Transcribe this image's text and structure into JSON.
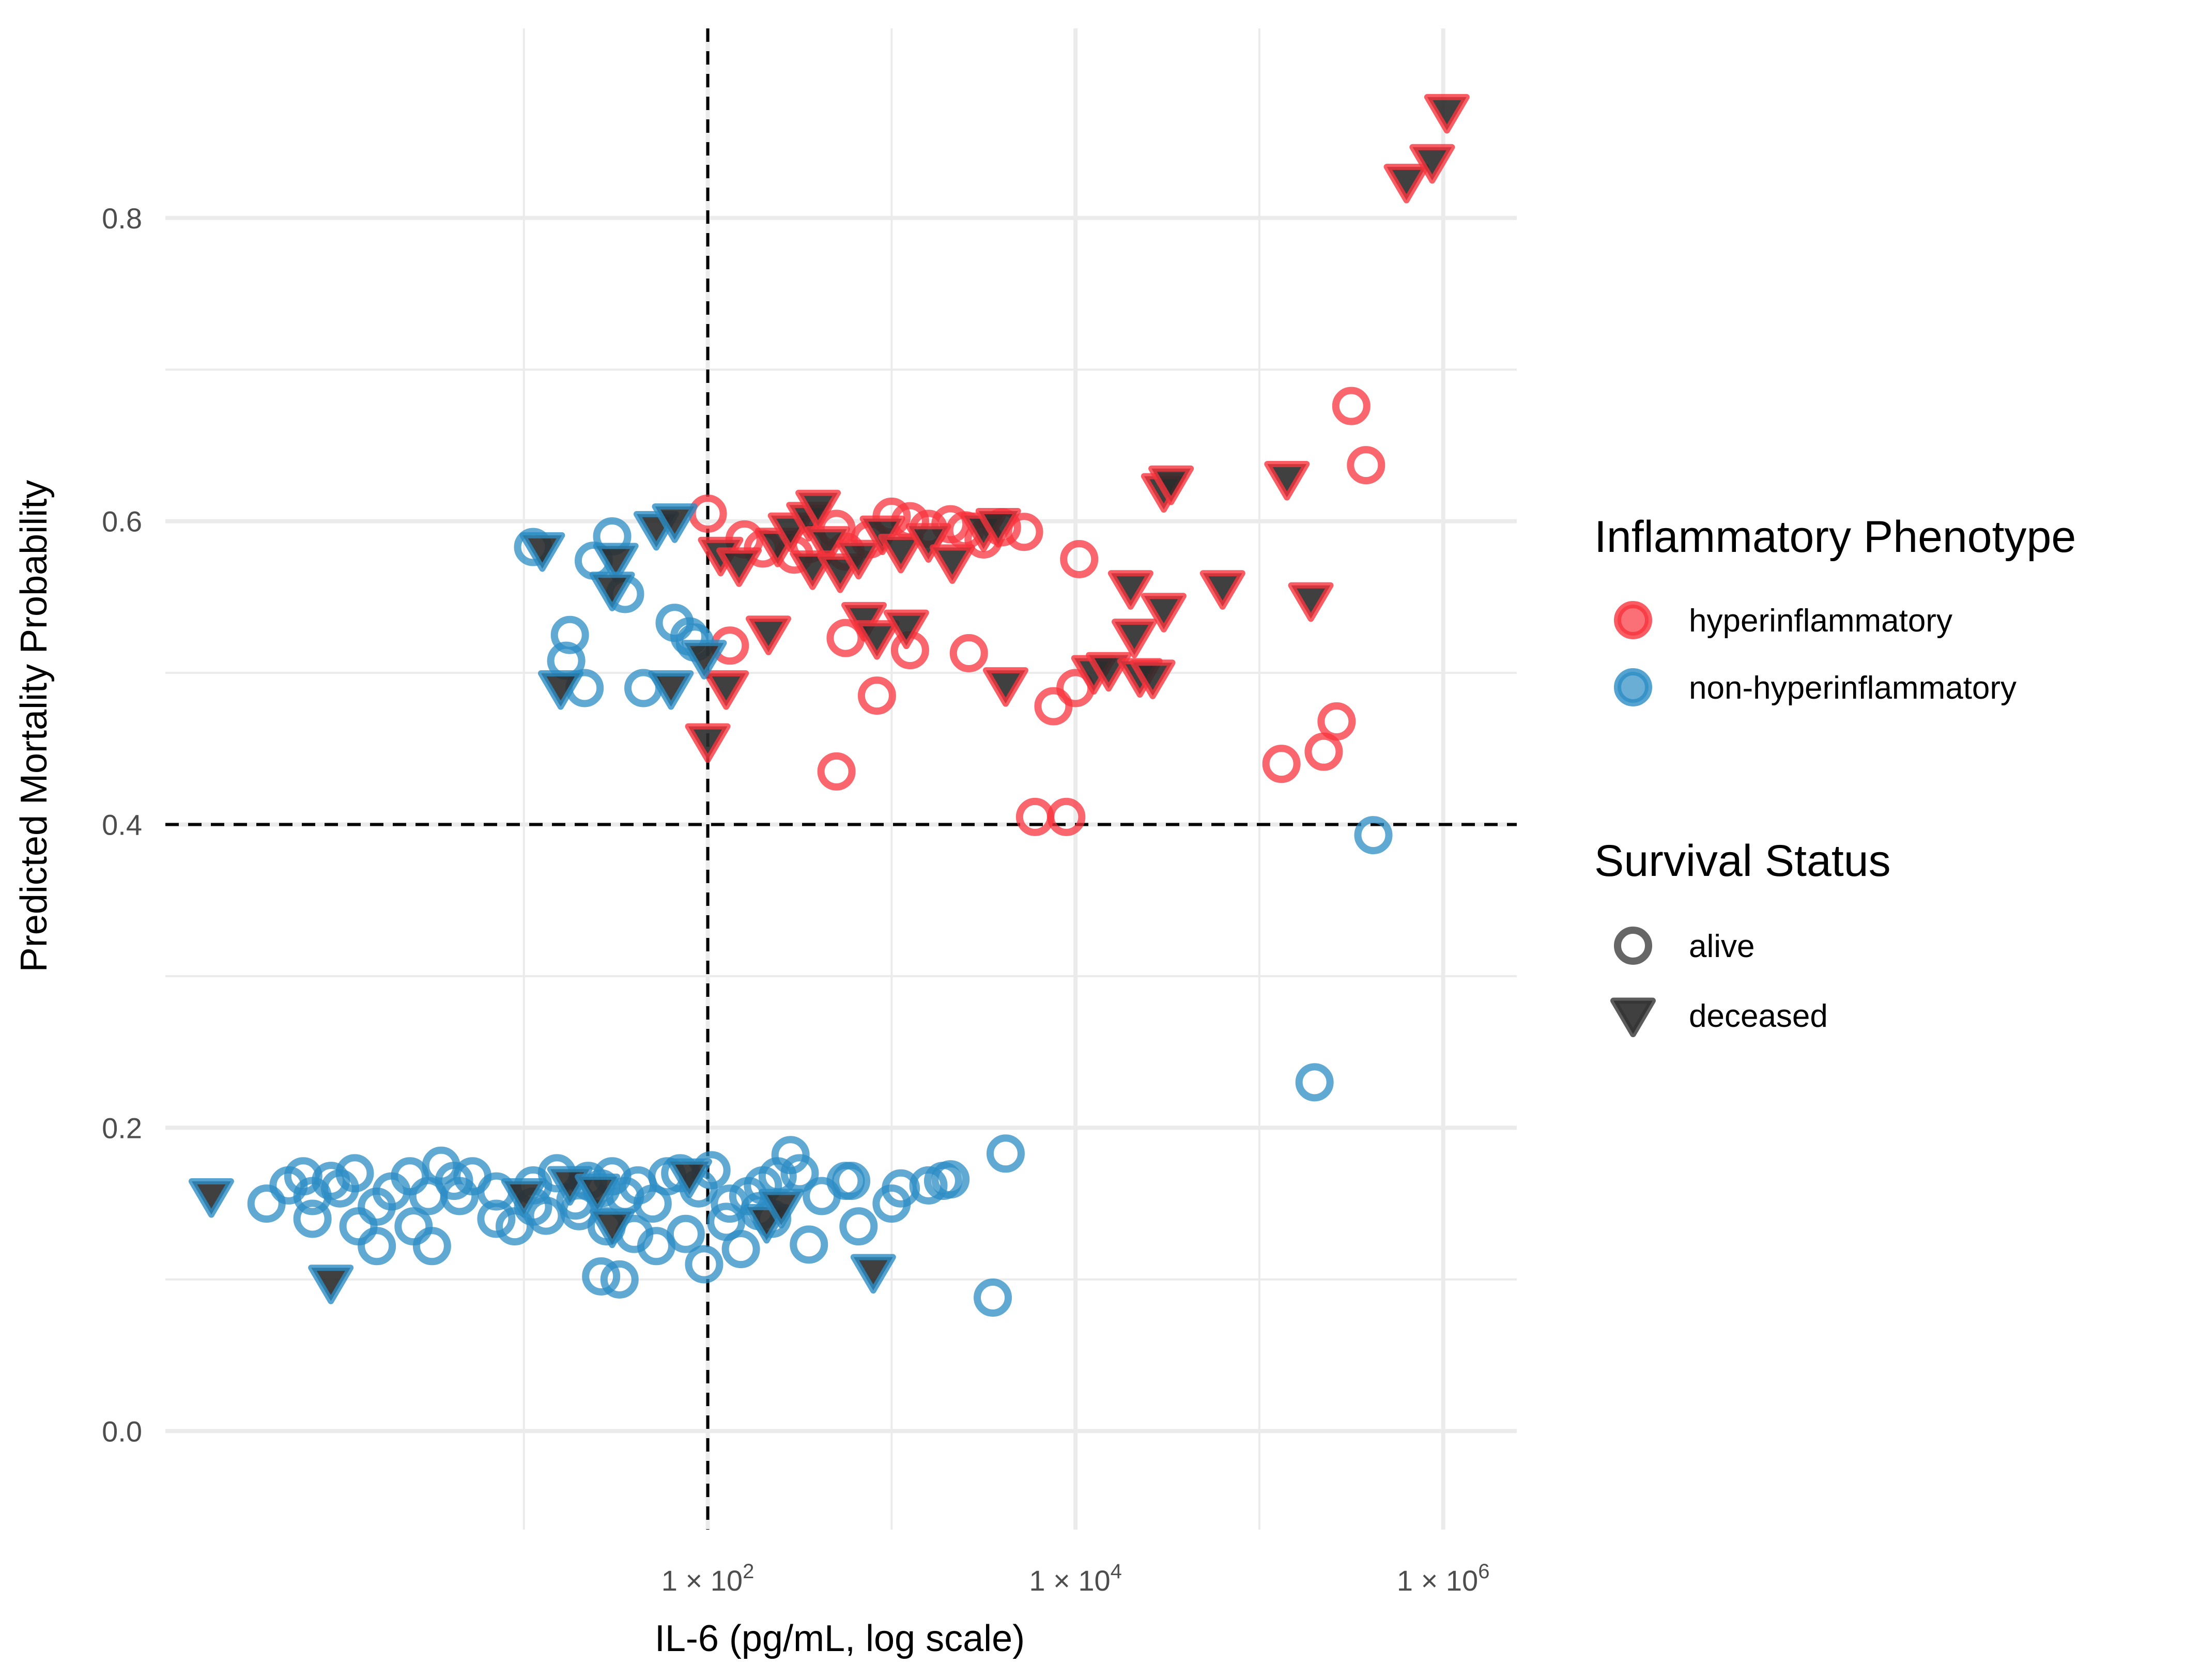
{
  "chart_data": {
    "type": "scatter",
    "xlabel": "IL-6 (pg/mL, log scale)",
    "ylabel": "Predicted Mortality Probability",
    "x_scale": "log10",
    "xlim_log10": [
      -0.95,
      6.4
    ],
    "ylim": [
      -0.065,
      0.925
    ],
    "x_ticks": [
      {
        "log10": 2,
        "mantissa": "1",
        "times": "×",
        "base": "10",
        "exp": "2"
      },
      {
        "log10": 4,
        "mantissa": "1",
        "times": "×",
        "base": "10",
        "exp": "4"
      },
      {
        "log10": 6,
        "mantissa": "1",
        "times": "×",
        "base": "10",
        "exp": "6"
      }
    ],
    "x_minor_log10": [
      1,
      3,
      5
    ],
    "y_ticks": [
      {
        "value": 0.0,
        "label": "0.0"
      },
      {
        "value": 0.2,
        "label": "0.2"
      },
      {
        "value": 0.4,
        "label": "0.4"
      },
      {
        "value": 0.6,
        "label": "0.6"
      },
      {
        "value": 0.8,
        "label": "0.8"
      }
    ],
    "y_minor": [
      0.1,
      0.3,
      0.5,
      0.7
    ],
    "reference_lines": {
      "x_log10": 2,
      "y": 0.4,
      "style": "dashed"
    },
    "colors": {
      "hyperinflammatory": "#f8333c",
      "non-hyperinflammatory": "#2b8cc4",
      "grid": "#ebebeb",
      "legend_shape": "#333333"
    },
    "legend": {
      "placement": "right",
      "color_title": "Inflammatory Phenotype",
      "color_entries": [
        "hyperinflammatory",
        "non-hyperinflammatory"
      ],
      "shape_title": "Survival Status",
      "shape_entries": [
        "alive",
        "deceased"
      ]
    },
    "series": [
      {
        "name": "hyperinflammatory",
        "status": "alive",
        "points": [
          [
            2.0,
            0.605
          ],
          [
            2.2,
            0.588
          ],
          [
            2.3,
            0.582
          ],
          [
            2.47,
            0.578
          ],
          [
            2.55,
            0.585
          ],
          [
            2.7,
            0.595
          ],
          [
            2.75,
            0.58
          ],
          [
            2.88,
            0.588
          ],
          [
            3.0,
            0.603
          ],
          [
            3.1,
            0.6
          ],
          [
            3.2,
            0.595
          ],
          [
            3.32,
            0.598
          ],
          [
            3.5,
            0.588
          ],
          [
            3.6,
            0.596
          ],
          [
            3.72,
            0.593
          ],
          [
            3.4,
            0.594
          ],
          [
            2.75,
            0.523
          ],
          [
            2.92,
            0.485
          ],
          [
            2.7,
            0.435
          ],
          [
            3.1,
            0.515
          ],
          [
            2.12,
            0.518
          ],
          [
            3.42,
            0.513
          ],
          [
            3.88,
            0.478
          ],
          [
            4.0,
            0.49
          ],
          [
            4.02,
            0.575
          ],
          [
            5.12,
            0.44
          ],
          [
            5.35,
            0.448
          ],
          [
            5.42,
            0.468
          ],
          [
            5.58,
            0.637
          ],
          [
            3.78,
            0.405
          ],
          [
            3.95,
            0.405
          ],
          [
            5.5,
            0.676
          ]
        ]
      },
      {
        "name": "hyperinflammatory",
        "status": "deceased",
        "points": [
          [
            2.07,
            0.578
          ],
          [
            2.17,
            0.571
          ],
          [
            2.38,
            0.584
          ],
          [
            2.45,
            0.594
          ],
          [
            2.55,
            0.601
          ],
          [
            2.6,
            0.609
          ],
          [
            2.65,
            0.585
          ],
          [
            2.57,
            0.569
          ],
          [
            2.72,
            0.567
          ],
          [
            2.82,
            0.576
          ],
          [
            2.95,
            0.592
          ],
          [
            3.05,
            0.58
          ],
          [
            3.2,
            0.587
          ],
          [
            3.33,
            0.573
          ],
          [
            3.5,
            0.594
          ],
          [
            3.58,
            0.597
          ],
          [
            2.85,
            0.535
          ],
          [
            2.92,
            0.523
          ],
          [
            3.08,
            0.53
          ],
          [
            2.33,
            0.526
          ],
          [
            3.62,
            0.492
          ],
          [
            2.1,
            0.49
          ],
          [
            2.0,
            0.455
          ],
          [
            4.1,
            0.5
          ],
          [
            4.18,
            0.502
          ],
          [
            4.3,
            0.556
          ],
          [
            4.32,
            0.524
          ],
          [
            4.35,
            0.498
          ],
          [
            4.42,
            0.497
          ],
          [
            4.48,
            0.541
          ],
          [
            4.48,
            0.62
          ],
          [
            4.52,
            0.625
          ],
          [
            4.8,
            0.556
          ],
          [
            5.15,
            0.628
          ],
          [
            5.28,
            0.548
          ],
          [
            5.8,
            0.824
          ],
          [
            5.94,
            0.837
          ],
          [
            6.02,
            0.87
          ]
        ]
      },
      {
        "name": "non-hyperinflammatory",
        "status": "alive",
        "points": [
          [
            1.05,
            0.583
          ],
          [
            1.38,
            0.574
          ],
          [
            1.48,
            0.59
          ],
          [
            1.55,
            0.552
          ],
          [
            1.25,
            0.525
          ],
          [
            1.23,
            0.508
          ],
          [
            1.33,
            0.49
          ],
          [
            1.65,
            0.49
          ],
          [
            1.82,
            0.533
          ],
          [
            1.9,
            0.524
          ],
          [
            1.93,
            0.52
          ],
          [
            5.62,
            0.393
          ],
          [
            5.3,
            0.23
          ],
          [
            -0.4,
            0.15
          ],
          [
            -0.28,
            0.162
          ],
          [
            -0.2,
            0.168
          ],
          [
            -0.15,
            0.155
          ],
          [
            -0.05,
            0.165
          ],
          [
            0.0,
            0.16
          ],
          [
            0.08,
            0.17
          ],
          [
            0.2,
            0.148
          ],
          [
            0.28,
            0.158
          ],
          [
            0.38,
            0.168
          ],
          [
            0.48,
            0.155
          ],
          [
            0.55,
            0.175
          ],
          [
            0.62,
            0.165
          ],
          [
            0.72,
            0.168
          ],
          [
            0.85,
            0.158
          ],
          [
            0.95,
            0.135
          ],
          [
            1.05,
            0.162
          ],
          [
            1.12,
            0.142
          ],
          [
            1.18,
            0.17
          ],
          [
            1.28,
            0.152
          ],
          [
            1.35,
            0.165
          ],
          [
            1.42,
            0.16
          ],
          [
            1.48,
            0.168
          ],
          [
            1.55,
            0.155
          ],
          [
            1.62,
            0.162
          ],
          [
            1.7,
            0.15
          ],
          [
            1.78,
            0.168
          ],
          [
            1.85,
            0.17
          ],
          [
            1.95,
            0.16
          ],
          [
            2.02,
            0.172
          ],
          [
            2.12,
            0.15
          ],
          [
            2.22,
            0.155
          ],
          [
            2.3,
            0.162
          ],
          [
            2.38,
            0.168
          ],
          [
            2.45,
            0.182
          ],
          [
            2.5,
            0.17
          ],
          [
            2.62,
            0.155
          ],
          [
            2.78,
            0.165
          ],
          [
            2.82,
            0.135
          ],
          [
            3.0,
            0.15
          ],
          [
            3.05,
            0.16
          ],
          [
            3.2,
            0.162
          ],
          [
            3.28,
            0.165
          ],
          [
            3.32,
            0.166
          ],
          [
            3.62,
            0.183
          ],
          [
            -0.15,
            0.14
          ],
          [
            0.1,
            0.135
          ],
          [
            0.2,
            0.122
          ],
          [
            0.4,
            0.135
          ],
          [
            0.5,
            0.122
          ],
          [
            0.65,
            0.155
          ],
          [
            0.85,
            0.14
          ],
          [
            1.05,
            0.148
          ],
          [
            1.3,
            0.145
          ],
          [
            1.45,
            0.135
          ],
          [
            1.6,
            0.13
          ],
          [
            1.72,
            0.122
          ],
          [
            1.88,
            0.13
          ],
          [
            1.98,
            0.11
          ],
          [
            2.1,
            0.138
          ],
          [
            2.18,
            0.12
          ],
          [
            2.28,
            0.145
          ],
          [
            2.35,
            0.14
          ],
          [
            2.55,
            0.123
          ],
          [
            2.75,
            0.165
          ],
          [
            3.55,
            0.088
          ],
          [
            1.42,
            0.102
          ],
          [
            1.52,
            0.1
          ]
        ]
      },
      {
        "name": "non-hyperinflammatory",
        "status": "deceased",
        "points": [
          [
            1.1,
            0.581
          ],
          [
            1.72,
            0.595
          ],
          [
            1.82,
            0.6
          ],
          [
            1.5,
            0.574
          ],
          [
            1.48,
            0.555
          ],
          [
            1.2,
            0.49
          ],
          [
            1.8,
            0.49
          ],
          [
            1.98,
            0.51
          ],
          [
            -0.7,
            0.155
          ],
          [
            -0.05,
            0.098
          ],
          [
            1.0,
            0.155
          ],
          [
            1.25,
            0.163
          ],
          [
            1.4,
            0.158
          ],
          [
            1.48,
            0.135
          ],
          [
            1.9,
            0.168
          ],
          [
            2.32,
            0.138
          ],
          [
            2.4,
            0.148
          ],
          [
            2.9,
            0.105
          ]
        ]
      }
    ]
  }
}
